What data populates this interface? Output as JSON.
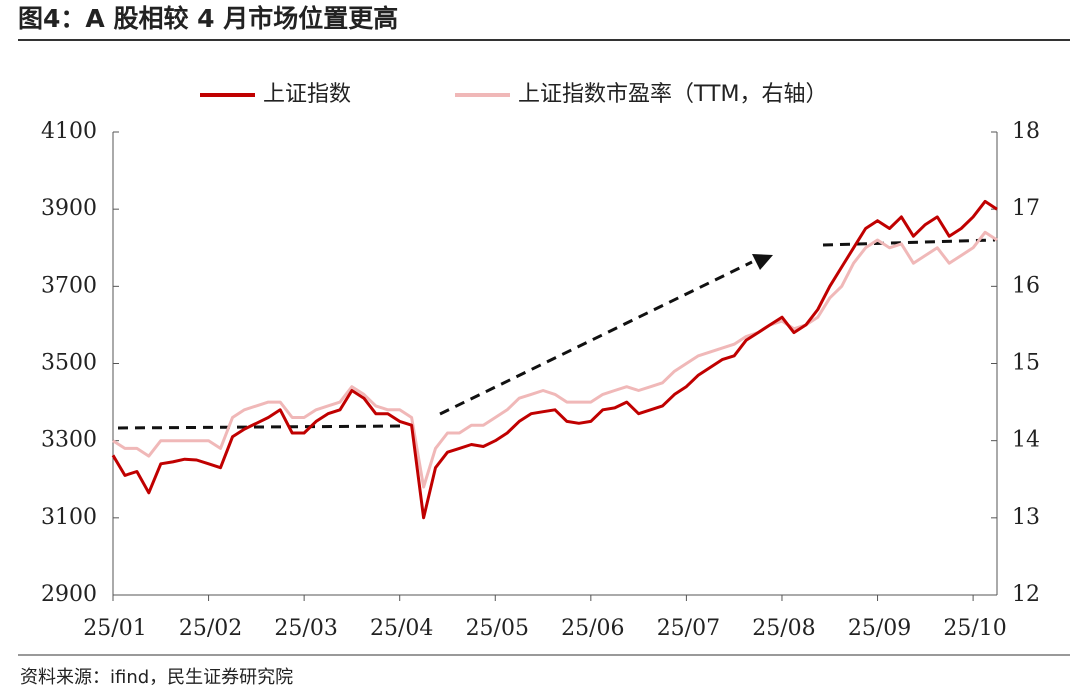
{
  "chart_data": {
    "type": "line",
    "title": "图4：A 股相较 4 月市场位置更高",
    "source": "资料来源：ifind，民生证券研究院",
    "categories": [
      "25/01",
      null,
      null,
      null,
      null,
      null,
      null,
      null,
      "25/02",
      null,
      null,
      null,
      null,
      null,
      null,
      null,
      "25/03",
      null,
      null,
      null,
      null,
      null,
      null,
      null,
      "25/04",
      null,
      null,
      null,
      null,
      null,
      null,
      null,
      "25/05",
      null,
      null,
      null,
      null,
      null,
      null,
      null,
      "25/06",
      null,
      null,
      null,
      null,
      null,
      null,
      null,
      "25/07",
      null,
      null,
      null,
      null,
      null,
      null,
      null,
      "25/08",
      null,
      null,
      null,
      null,
      null,
      null,
      null,
      "25/09",
      null,
      null,
      null,
      null,
      null,
      null,
      null,
      "25/10",
      null,
      null
    ],
    "series": [
      {
        "name": "上证指数",
        "color": "#c00000",
        "axis": "y",
        "values": [
          3262,
          3210,
          3220,
          3165,
          3240,
          3245,
          3252,
          3250,
          3240,
          3230,
          3310,
          3330,
          3345,
          3360,
          3380,
          3320,
          3320,
          3350,
          3370,
          3380,
          3430,
          3410,
          3370,
          3370,
          3350,
          3340,
          3100,
          3230,
          3270,
          3280,
          3290,
          3285,
          3300,
          3320,
          3350,
          3370,
          3375,
          3380,
          3350,
          3345,
          3350,
          3380,
          3385,
          3400,
          3370,
          3380,
          3390,
          3420,
          3440,
          3470,
          3490,
          3510,
          3520,
          3560,
          3580,
          3600,
          3620,
          3580,
          3600,
          3640,
          3700,
          3750,
          3800,
          3850,
          3870,
          3850,
          3880,
          3830,
          3860,
          3880,
          3830,
          3850,
          3880,
          3920,
          3900
        ]
      },
      {
        "name": "上证指数市盈率（TTM，右轴）",
        "color": "#f0b8b8",
        "axis": "y2",
        "values": [
          14.0,
          13.9,
          13.9,
          13.8,
          14.0,
          14.0,
          14.0,
          14.0,
          14.0,
          13.9,
          14.3,
          14.4,
          14.45,
          14.5,
          14.5,
          14.3,
          14.3,
          14.4,
          14.45,
          14.5,
          14.7,
          14.6,
          14.45,
          14.4,
          14.4,
          14.3,
          13.4,
          13.9,
          14.1,
          14.1,
          14.2,
          14.2,
          14.3,
          14.4,
          14.55,
          14.6,
          14.65,
          14.6,
          14.5,
          14.5,
          14.5,
          14.6,
          14.65,
          14.7,
          14.65,
          14.7,
          14.75,
          14.9,
          15.0,
          15.1,
          15.15,
          15.2,
          15.25,
          15.35,
          15.4,
          15.5,
          15.55,
          15.45,
          15.5,
          15.6,
          15.85,
          16.0,
          16.3,
          16.5,
          16.6,
          16.5,
          16.55,
          16.3,
          16.4,
          16.5,
          16.3,
          16.4,
          16.5,
          16.7,
          16.6
        ]
      }
    ],
    "ylim": [
      2900,
      4100
    ],
    "yticks": [
      2900,
      3100,
      3300,
      3500,
      3700,
      3900,
      4100
    ],
    "y2lim": [
      12,
      18
    ],
    "y2ticks": [
      12,
      13,
      14,
      15,
      16,
      17,
      18
    ],
    "grid": false,
    "legend": "top"
  }
}
